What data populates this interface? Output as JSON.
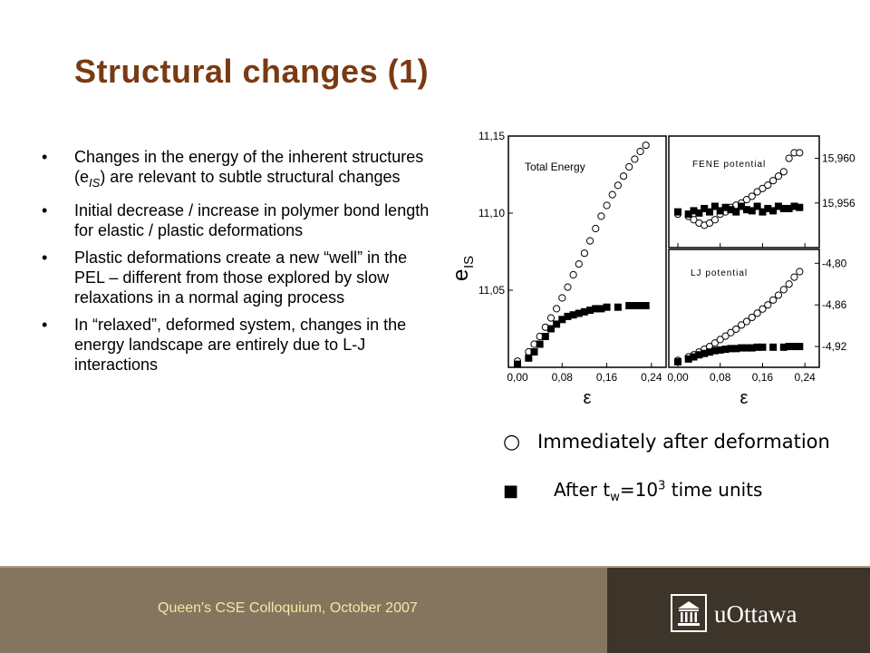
{
  "slide": {
    "title": "Structural changes (1)",
    "bullets": [
      "Changes in the energy of the inherent structures (e",
      "Initial decrease / increase in polymer bond length for elastic / plastic deformations",
      "Plastic deformations create a new “well” in the PEL – different from those explored by slow relaxations in a normal aging process",
      "In “relaxed”, deformed system, changes in the energy landscape are entirely due to L-J interactions"
    ],
    "bullet1_sub": "IS",
    "bullet1_tail": ") are relevant to subtle structural changes",
    "bullet_glyph": "•",
    "legend_open": "Immediately after deformation",
    "legend_open_symbol": "○",
    "legend_filled_symbol": "■",
    "legend_filled_prefix": "After t",
    "legend_filled_sub": "w",
    "legend_filled_mid": "=10",
    "legend_filled_sup": "3",
    "legend_filled_suffix": " time units",
    "footer": "Queen's CSE Colloquium, October 2007",
    "logo_text": "uOttawa",
    "colors": {
      "title": "#7a3a12",
      "footer_left": "#86755e",
      "footer_right": "#3d342a",
      "footer_text": "#f6e6a8"
    }
  },
  "chart_data": [
    {
      "type": "scatter",
      "title": "Total Energy",
      "ylabel": "e",
      "ylabel_sub": "IS",
      "xlabel": "ε",
      "xlim": [
        0,
        0.25
      ],
      "ylim": [
        11.0,
        11.15
      ],
      "xticks": [
        0,
        0.08,
        0.16,
        0.24
      ],
      "xtick_labels": [
        "0,00",
        "0,08",
        "0,16",
        "0,24"
      ],
      "yticks": [
        11.05,
        11.1,
        11.15
      ],
      "ytick_labels": [
        "11,05",
        "11,10",
        "11,15"
      ],
      "series": [
        {
          "marker": "open-circle",
          "x": [
            0.0,
            0.02,
            0.03,
            0.04,
            0.05,
            0.06,
            0.07,
            0.08,
            0.09,
            0.1,
            0.11,
            0.12,
            0.13,
            0.14,
            0.15,
            0.16,
            0.17,
            0.18,
            0.19,
            0.2,
            0.21,
            0.22,
            0.23
          ],
          "y": [
            11.004,
            11.01,
            11.015,
            11.02,
            11.026,
            11.032,
            11.038,
            11.045,
            11.052,
            11.06,
            11.067,
            11.074,
            11.082,
            11.09,
            11.098,
            11.105,
            11.112,
            11.118,
            11.124,
            11.13,
            11.135,
            11.14,
            11.144
          ]
        },
        {
          "marker": "filled-square",
          "x": [
            0.0,
            0.02,
            0.03,
            0.04,
            0.05,
            0.06,
            0.07,
            0.08,
            0.09,
            0.1,
            0.11,
            0.12,
            0.13,
            0.14,
            0.15,
            0.16,
            0.18,
            0.2,
            0.21,
            0.22,
            0.23
          ],
          "y": [
            11.002,
            11.006,
            11.01,
            11.015,
            11.02,
            11.025,
            11.028,
            11.031,
            11.033,
            11.034,
            11.035,
            11.036,
            11.037,
            11.038,
            11.038,
            11.039,
            11.039,
            11.04,
            11.04,
            11.04,
            11.04
          ]
        }
      ]
    },
    {
      "type": "scatter",
      "title": "FENE potential",
      "xlim": [
        0,
        0.25
      ],
      "ylim": [
        15.952,
        15.962
      ],
      "xticks": [
        0,
        0.08,
        0.16,
        0.24
      ],
      "yticks": [
        15.956,
        15.96
      ],
      "ytick_labels": [
        "15,956",
        "15,960"
      ],
      "yaxis_side": "right",
      "series": [
        {
          "marker": "open-circle",
          "x": [
            0.0,
            0.02,
            0.03,
            0.04,
            0.05,
            0.06,
            0.07,
            0.08,
            0.09,
            0.1,
            0.11,
            0.12,
            0.13,
            0.14,
            0.15,
            0.16,
            0.17,
            0.18,
            0.19,
            0.2,
            0.21,
            0.22,
            0.23
          ],
          "y": [
            15.955,
            15.9548,
            15.9545,
            15.9542,
            15.954,
            15.9542,
            15.9545,
            15.955,
            15.9552,
            15.9556,
            15.9558,
            15.956,
            15.9563,
            15.9566,
            15.957,
            15.9573,
            15.9576,
            15.958,
            15.9584,
            15.9588,
            15.96,
            15.9605,
            15.9605
          ]
        },
        {
          "marker": "filled-square",
          "x": [
            0.0,
            0.02,
            0.03,
            0.04,
            0.05,
            0.06,
            0.07,
            0.08,
            0.09,
            0.1,
            0.11,
            0.12,
            0.13,
            0.14,
            0.15,
            0.16,
            0.17,
            0.18,
            0.19,
            0.2,
            0.21,
            0.22,
            0.23
          ],
          "y": [
            15.9552,
            15.955,
            15.9553,
            15.9551,
            15.9555,
            15.9552,
            15.9557,
            15.9553,
            15.9556,
            15.9554,
            15.9552,
            15.9557,
            15.9554,
            15.9553,
            15.9557,
            15.9552,
            15.9555,
            15.9553,
            15.9557,
            15.9555,
            15.9555,
            15.9557,
            15.9556
          ]
        }
      ]
    },
    {
      "type": "scatter",
      "title": "LJ potential",
      "xlabel": "ε",
      "xlim": [
        0,
        0.25
      ],
      "ylim": [
        -4.95,
        -4.78
      ],
      "xticks": [
        0,
        0.08,
        0.16,
        0.24
      ],
      "xtick_labels": [
        "0,00",
        "0,08",
        "0,16",
        "0,24"
      ],
      "yticks": [
        -4.8,
        -4.86,
        -4.92
      ],
      "ytick_labels": [
        "-4,80",
        "-4,86",
        "-4,92"
      ],
      "yaxis_side": "right",
      "series": [
        {
          "marker": "open-circle",
          "x": [
            0.0,
            0.02,
            0.03,
            0.04,
            0.05,
            0.06,
            0.07,
            0.08,
            0.09,
            0.1,
            0.11,
            0.12,
            0.13,
            0.14,
            0.15,
            0.16,
            0.17,
            0.18,
            0.19,
            0.2,
            0.21,
            0.22,
            0.23
          ],
          "y": [
            -4.94,
            -4.935,
            -4.932,
            -4.928,
            -4.924,
            -4.92,
            -4.915,
            -4.91,
            -4.905,
            -4.9,
            -4.895,
            -4.889,
            -4.884,
            -4.878,
            -4.872,
            -4.866,
            -4.86,
            -4.853,
            -4.846,
            -4.838,
            -4.83,
            -4.82,
            -4.812
          ]
        },
        {
          "marker": "filled-square",
          "x": [
            0.0,
            0.02,
            0.03,
            0.04,
            0.05,
            0.06,
            0.07,
            0.08,
            0.09,
            0.1,
            0.11,
            0.12,
            0.13,
            0.14,
            0.15,
            0.16,
            0.18,
            0.2,
            0.21,
            0.22,
            0.23
          ],
          "y": [
            -4.942,
            -4.938,
            -4.935,
            -4.932,
            -4.93,
            -4.928,
            -4.926,
            -4.925,
            -4.924,
            -4.923,
            -4.923,
            -4.922,
            -4.922,
            -4.922,
            -4.921,
            -4.921,
            -4.921,
            -4.921,
            -4.92,
            -4.92,
            -4.92
          ]
        }
      ]
    }
  ]
}
